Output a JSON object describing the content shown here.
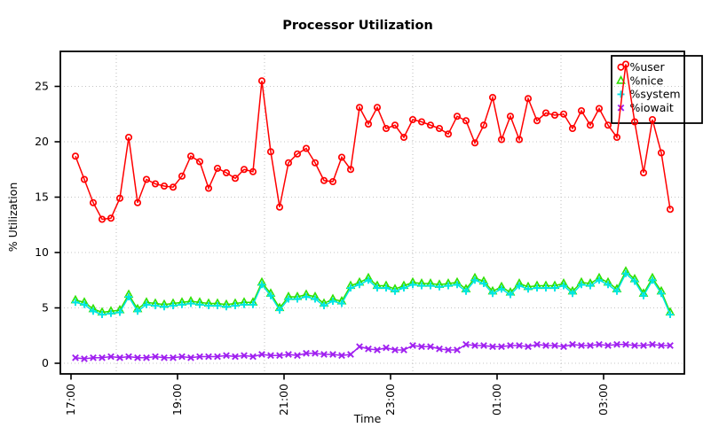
{
  "chart_data": {
    "type": "line",
    "title": "Processor Utilization",
    "xlabel": "Time",
    "ylabel": "% Utilization",
    "x_tick_labels": [
      "17:00",
      "19:00",
      "21:00",
      "23:00",
      "01:00",
      "03:00"
    ],
    "y_ticks": [
      0,
      5,
      10,
      15,
      20,
      25
    ],
    "ylim": [
      0,
      27.5
    ],
    "grid": "dotted-gray",
    "grid_color": "#c4c4c4",
    "legend_position": "top-right",
    "x_gridlines_minutes": [
      51,
      218,
      385,
      552
    ],
    "times": [
      "17:05",
      "17:15",
      "17:25",
      "17:35",
      "17:45",
      "17:55",
      "18:05",
      "18:15",
      "18:25",
      "18:35",
      "18:45",
      "18:55",
      "19:05",
      "19:15",
      "19:25",
      "19:35",
      "19:45",
      "19:55",
      "20:05",
      "20:15",
      "20:25",
      "20:35",
      "20:45",
      "20:55",
      "21:05",
      "21:15",
      "21:25",
      "21:35",
      "21:45",
      "21:55",
      "22:05",
      "22:15",
      "22:25",
      "22:35",
      "22:45",
      "22:55",
      "23:05",
      "23:15",
      "23:25",
      "23:35",
      "23:45",
      "23:55",
      "00:05",
      "00:15",
      "00:25",
      "00:35",
      "00:45",
      "00:55",
      "01:05",
      "01:15",
      "01:25",
      "01:35",
      "01:45",
      "01:55",
      "02:05",
      "02:15",
      "02:25",
      "02:35",
      "02:45",
      "02:55",
      "03:05",
      "03:15",
      "03:25",
      "03:35",
      "03:45",
      "03:55",
      "04:05",
      "04:15"
    ],
    "series": [
      {
        "name": "%user",
        "color": "#ff0000",
        "marker": "circle",
        "values": [
          18.7,
          16.6,
          14.5,
          13.0,
          13.1,
          14.9,
          20.4,
          14.5,
          16.6,
          16.2,
          16.0,
          15.9,
          16.9,
          18.7,
          18.2,
          15.8,
          17.6,
          17.2,
          16.7,
          17.5,
          17.3,
          25.5,
          19.1,
          14.1,
          18.1,
          18.9,
          19.4,
          18.1,
          16.5,
          16.4,
          18.6,
          17.5,
          23.1,
          21.6,
          23.1,
          21.2,
          21.5,
          20.4,
          22.0,
          21.8,
          21.5,
          21.2,
          20.7,
          22.3,
          21.9,
          19.9,
          21.5,
          24.0,
          20.2,
          22.3,
          20.2,
          23.9,
          21.9,
          22.6,
          22.4,
          22.5,
          21.2,
          22.8,
          21.5,
          23.0,
          21.5,
          20.4,
          27.0,
          21.8,
          17.2,
          22.0,
          19.0,
          13.9
        ]
      },
      {
        "name": "%nice",
        "color": "#2ee000",
        "marker": "triangle",
        "values": [
          5.7,
          5.5,
          4.9,
          4.6,
          4.7,
          4.8,
          6.2,
          4.9,
          5.5,
          5.4,
          5.3,
          5.4,
          5.5,
          5.6,
          5.5,
          5.4,
          5.4,
          5.3,
          5.4,
          5.5,
          5.5,
          7.3,
          6.3,
          5.0,
          6.0,
          6.0,
          6.2,
          6.0,
          5.4,
          5.8,
          5.6,
          7.0,
          7.3,
          7.7,
          7.0,
          7.0,
          6.7,
          7.0,
          7.3,
          7.2,
          7.2,
          7.1,
          7.2,
          7.3,
          6.7,
          7.7,
          7.4,
          6.5,
          6.9,
          6.4,
          7.2,
          6.9,
          7.0,
          7.0,
          7.0,
          7.2,
          6.5,
          7.3,
          7.2,
          7.7,
          7.3,
          6.7,
          8.3,
          7.6,
          6.3,
          7.7,
          6.5,
          4.6
        ]
      },
      {
        "name": "%system",
        "color": "#00e5e5",
        "marker": "plus",
        "values": [
          5.5,
          5.3,
          4.7,
          4.4,
          4.5,
          4.6,
          6.0,
          4.7,
          5.3,
          5.2,
          5.1,
          5.2,
          5.3,
          5.4,
          5.3,
          5.2,
          5.2,
          5.1,
          5.2,
          5.3,
          5.3,
          7.1,
          6.1,
          4.8,
          5.8,
          5.8,
          6.0,
          5.8,
          5.2,
          5.6,
          5.4,
          6.8,
          7.1,
          7.5,
          6.8,
          6.8,
          6.5,
          6.8,
          7.1,
          7.0,
          7.0,
          6.9,
          7.0,
          7.1,
          6.5,
          7.5,
          7.2,
          6.3,
          6.7,
          6.2,
          7.0,
          6.7,
          6.8,
          6.8,
          6.8,
          7.0,
          6.3,
          7.1,
          7.0,
          7.5,
          7.1,
          6.5,
          8.1,
          7.4,
          6.1,
          7.5,
          6.3,
          4.4
        ]
      },
      {
        "name": "%iowait",
        "color": "#a020f0",
        "marker": "x",
        "values": [
          0.5,
          0.4,
          0.5,
          0.5,
          0.6,
          0.5,
          0.6,
          0.5,
          0.5,
          0.6,
          0.5,
          0.5,
          0.6,
          0.5,
          0.6,
          0.6,
          0.6,
          0.7,
          0.6,
          0.7,
          0.6,
          0.8,
          0.7,
          0.7,
          0.8,
          0.7,
          0.9,
          0.9,
          0.8,
          0.8,
          0.7,
          0.8,
          1.5,
          1.3,
          1.2,
          1.4,
          1.2,
          1.2,
          1.6,
          1.5,
          1.5,
          1.3,
          1.2,
          1.2,
          1.7,
          1.6,
          1.6,
          1.5,
          1.5,
          1.6,
          1.6,
          1.5,
          1.7,
          1.6,
          1.6,
          1.5,
          1.7,
          1.6,
          1.6,
          1.7,
          1.6,
          1.7,
          1.7,
          1.6,
          1.6,
          1.7,
          1.6,
          1.6
        ]
      }
    ]
  }
}
